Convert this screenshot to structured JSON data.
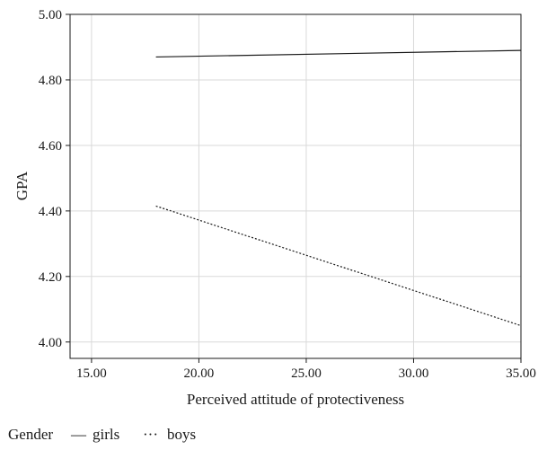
{
  "chart_data": {
    "type": "line",
    "title": "",
    "xlabel": "Perceived attitude of protectiveness",
    "ylabel": "GPA",
    "xlim": [
      14,
      35
    ],
    "ylim": [
      3.95,
      5.0
    ],
    "x_ticks": [
      "15.00",
      "20.00",
      "25.00",
      "30.00",
      "35.00"
    ],
    "y_ticks": [
      "4.00",
      "4.20",
      "4.40",
      "4.60",
      "4.80",
      "5.00"
    ],
    "grid": true,
    "legend": {
      "title": "Gender",
      "position": "bottom-left",
      "entries": [
        {
          "label": "girls",
          "marker": "—",
          "style": "solid"
        },
        {
          "label": "boys",
          "marker": "···",
          "style": "dotted"
        }
      ]
    },
    "series": [
      {
        "name": "girls",
        "style": "solid",
        "color": "#1a1a1a",
        "x": [
          18,
          35
        ],
        "y": [
          4.87,
          4.89
        ]
      },
      {
        "name": "boys",
        "style": "dotted",
        "color": "#1a1a1a",
        "x": [
          18,
          35
        ],
        "y": [
          4.415,
          4.05
        ]
      }
    ]
  }
}
